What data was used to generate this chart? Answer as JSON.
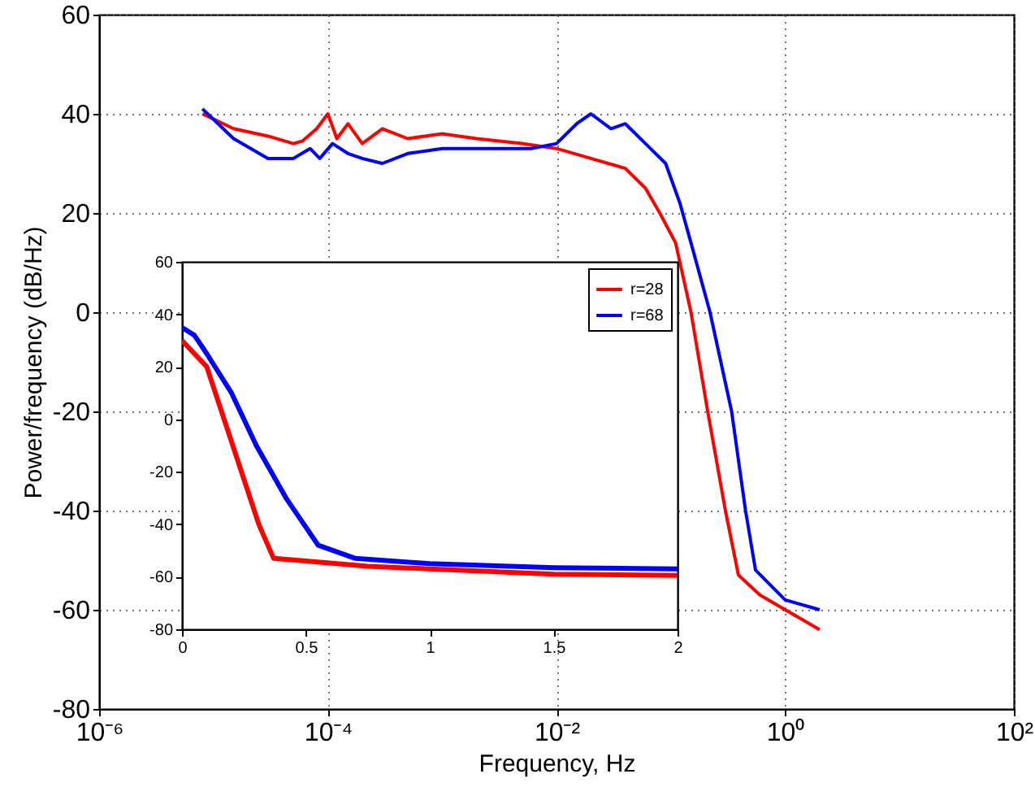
{
  "chart_data": [
    {
      "type": "line",
      "xlabel": "Frequency, Hz",
      "ylabel": "Power/frequency (dB/Hz)",
      "log": "x",
      "grid": true,
      "legend": false,
      "xlim": [
        1e-06,
        100
      ],
      "xticks": [
        {
          "value": 1e-06,
          "label": "10⁻⁶"
        },
        {
          "value": 0.0001,
          "label": "10⁻⁴"
        },
        {
          "value": 0.01,
          "label": "10⁻²"
        },
        {
          "value": 1,
          "label": "10⁰"
        },
        {
          "value": 100,
          "label": "10²"
        }
      ],
      "ylim": [
        -80,
        60
      ],
      "yticks": [
        -80,
        -60,
        -40,
        -20,
        0,
        20,
        40,
        60
      ],
      "series": [
        {
          "color": "#ff0000",
          "x": [
            8e-06,
            1.5e-05,
            3e-05,
            5e-05,
            6e-05,
            8e-05,
            0.0001,
            0.00012,
            0.00015,
            0.0002,
            0.0003,
            0.0005,
            0.001,
            0.002,
            0.005,
            0.01,
            0.02,
            0.04,
            0.06,
            0.08,
            0.11,
            0.15,
            0.21,
            0.3,
            0.39,
            0.6,
            1,
            2
          ],
          "values": [
            40,
            37,
            35.5,
            34,
            34.5,
            37,
            40,
            35,
            38,
            34,
            37,
            35,
            36,
            35,
            34,
            33,
            31,
            29,
            25,
            20,
            14,
            0,
            -20,
            -40,
            -53,
            -57,
            -60,
            -64
          ]
        },
        {
          "color": "#0000ff",
          "x": [
            8e-06,
            1.5e-05,
            3e-05,
            5e-05,
            7e-05,
            8.5e-05,
            0.00011,
            0.00015,
            0.0002,
            0.0003,
            0.0005,
            0.001,
            0.003,
            0.006,
            0.01,
            0.015,
            0.02,
            0.03,
            0.04,
            0.06,
            0.09,
            0.12,
            0.15,
            0.22,
            0.34,
            0.45,
            0.55,
            1,
            2
          ],
          "values": [
            41,
            35,
            31,
            31,
            33,
            31,
            34,
            32,
            31,
            30,
            32,
            33,
            33,
            33,
            34,
            38,
            40,
            37,
            38,
            34,
            30,
            22,
            14,
            0,
            -20,
            -40,
            -52,
            -58,
            -60
          ]
        }
      ]
    },
    {
      "type": "line",
      "grid": false,
      "legend": "top right",
      "xlim": [
        0,
        2
      ],
      "xticks": [
        0,
        0.5,
        1,
        1.5,
        2
      ],
      "ylim": [
        -80,
        60
      ],
      "yticks": [
        -80,
        -60,
        -40,
        -20,
        0,
        20,
        40,
        60
      ],
      "series": [
        {
          "name": "r=28",
          "color": "#ff0000",
          "x": [
            0,
            0.05,
            0.1,
            0.17,
            0.24,
            0.31,
            0.37,
            0.5,
            0.75,
            1,
            1.5,
            2
          ],
          "values": [
            30,
            25,
            20,
            0,
            -20,
            -40,
            -53,
            -54,
            -56,
            -57,
            -59,
            -59.5
          ]
        },
        {
          "name": "r=68",
          "color": "#0000ff",
          "x": [
            0,
            0.05,
            0.1,
            0.2,
            0.3,
            0.42,
            0.55,
            0.7,
            1,
            1.5,
            2
          ],
          "values": [
            35,
            32,
            25,
            10,
            -10,
            -30,
            -48,
            -53,
            -55,
            -56.5,
            -57
          ]
        }
      ]
    }
  ]
}
